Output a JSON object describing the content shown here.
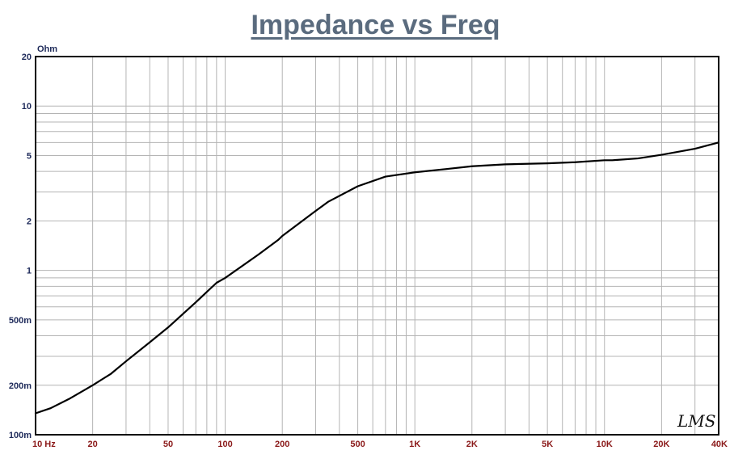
{
  "chart_data": {
    "type": "line",
    "title": "Impedance vs Freq",
    "ylabel": "Ohm",
    "xscale": "log",
    "yscale": "log",
    "xlim": [
      10,
      40000
    ],
    "ylim": [
      0.1,
      20
    ],
    "grid": true,
    "x_ticks": [
      {
        "value": 10,
        "label": "10  Hz"
      },
      {
        "value": 20,
        "label": "20"
      },
      {
        "value": 50,
        "label": "50"
      },
      {
        "value": 100,
        "label": "100"
      },
      {
        "value": 200,
        "label": "200"
      },
      {
        "value": 500,
        "label": "500"
      },
      {
        "value": 1000,
        "label": "1K"
      },
      {
        "value": 2000,
        "label": "2K"
      },
      {
        "value": 5000,
        "label": "5K"
      },
      {
        "value": 10000,
        "label": "10K"
      },
      {
        "value": 20000,
        "label": "20K"
      },
      {
        "value": 40000,
        "label": "40K"
      }
    ],
    "y_ticks": [
      {
        "value": 0.1,
        "label": "100m"
      },
      {
        "value": 0.2,
        "label": "200m"
      },
      {
        "value": 0.5,
        "label": "500m"
      },
      {
        "value": 1,
        "label": "1"
      },
      {
        "value": 2,
        "label": "2"
      },
      {
        "value": 5,
        "label": "5"
      },
      {
        "value": 10,
        "label": "10"
      },
      {
        "value": 20,
        "label": "20"
      }
    ],
    "series": [
      {
        "color": "#000000",
        "x": [
          10,
          12,
          15,
          20,
          25,
          30,
          40,
          50,
          70,
          90,
          100,
          150,
          190,
          200,
          300,
          350,
          500,
          700,
          1000,
          1500,
          2000,
          3000,
          5000,
          7000,
          10000,
          11000,
          15000,
          20000,
          30000,
          40000
        ],
        "y": [
          0.135,
          0.145,
          0.165,
          0.2,
          0.235,
          0.28,
          0.365,
          0.45,
          0.64,
          0.84,
          0.9,
          1.25,
          1.53,
          1.62,
          2.3,
          2.62,
          3.25,
          3.72,
          3.95,
          4.15,
          4.3,
          4.42,
          4.48,
          4.55,
          4.68,
          4.68,
          4.8,
          5.05,
          5.5,
          6.0
        ]
      }
    ]
  },
  "logo_text": "LMS"
}
